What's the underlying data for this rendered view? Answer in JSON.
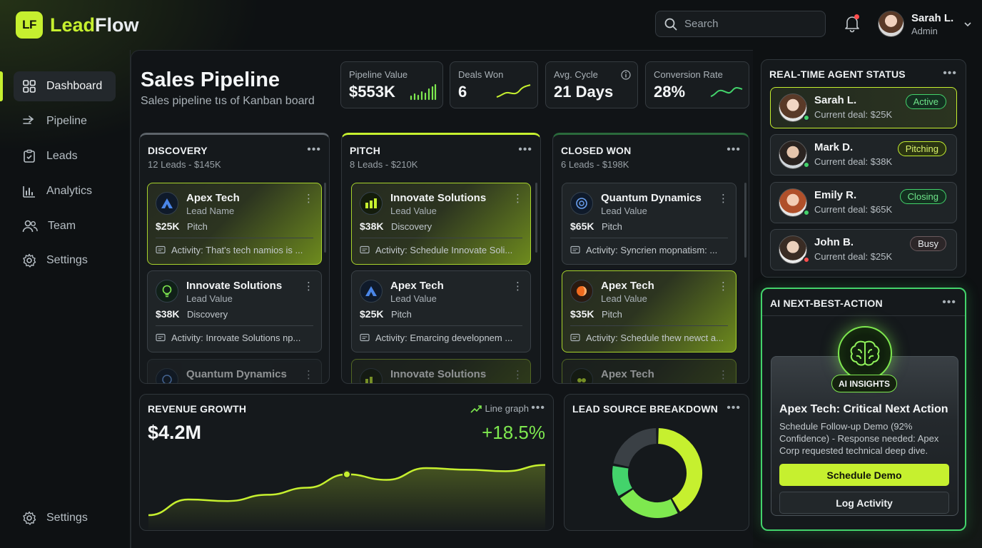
{
  "app": {
    "logo_mark": "LF",
    "logo_lead": "Lead",
    "logo_flow": "Flow"
  },
  "header": {
    "search_placeholder": "Search",
    "user": {
      "name": "Sarah L.",
      "role": "Admin"
    }
  },
  "sidebar": {
    "items": [
      {
        "label": "Dashboard",
        "icon": "grid-icon",
        "active": true
      },
      {
        "label": "Pipeline",
        "icon": "arrow-right-icon"
      },
      {
        "label": "Leads",
        "icon": "clipboard-icon"
      },
      {
        "label": "Analytics",
        "icon": "bar-chart-icon"
      },
      {
        "label": "Team",
        "icon": "users-icon"
      },
      {
        "label": "Settings",
        "icon": "gear-icon"
      }
    ],
    "bottom_settings": "Settings"
  },
  "page": {
    "title": "Sales Pipeline",
    "subtitle": "Sales pipeline tıs of Kanban board"
  },
  "kpis": [
    {
      "label": "Pipeline Value",
      "value": "$553K"
    },
    {
      "label": "Deals Won",
      "value": "6"
    },
    {
      "label": "Avg. Cycle",
      "value": "21 Days"
    },
    {
      "label": "Conversion Rate",
      "value": "28%"
    }
  ],
  "columns": [
    {
      "title": "DISCOVERY",
      "sub": "12 Leads - $145K",
      "cards": [
        {
          "name": "Apex Tech",
          "sub": "Lead Name",
          "amount": "$25K",
          "stage": "Pitch",
          "activity": "Activity: That's tech namios is ..."
        },
        {
          "name": "Innovate Solutions",
          "sub": "Lead Value",
          "amount": "$38K",
          "stage": "Discovery",
          "activity": "Activity: Inrovate Solutions np..."
        },
        {
          "name": "Quantum Dynamics"
        }
      ]
    },
    {
      "title": "PITCH",
      "sub": "8 Leads - $210K",
      "cards": [
        {
          "name": "Innovate Solutions",
          "sub": "Lead Value",
          "amount": "$38K",
          "stage": "Discovery",
          "activity": "Activity: Schedule Innovate Soli..."
        },
        {
          "name": "Apex Tech",
          "sub": "Lead Value",
          "amount": "$25K",
          "stage": "Pitch",
          "activity": "Activity: Emarcing developnem ..."
        },
        {
          "name": "Innovate Solutions"
        }
      ]
    },
    {
      "title": "CLOSED WON",
      "sub": "6 Leads - $198K",
      "cards": [
        {
          "name": "Quantum Dynamics",
          "sub": "Lead Value",
          "amount": "$65K",
          "stage": "Pitch",
          "activity": "Activity: Syncrien mopnatism: ..."
        },
        {
          "name": "Apex Tech",
          "sub": "Lead Value",
          "amount": "$35K",
          "stage": "Pitch",
          "activity": "Activity: Schedule thew newct a..."
        },
        {
          "name": "Apex Tech"
        }
      ]
    }
  ],
  "revenue": {
    "title": "REVENUE GROWTH",
    "value": "$4.2M",
    "change": "+18.5%",
    "graph_label": "Line graph"
  },
  "lead_source": {
    "title": "LEAD SOURCE BREAKDOWN"
  },
  "agents": {
    "title": "REAL-TIME AGENT STATUS",
    "list": [
      {
        "name": "Sarah L.",
        "deal": "Current deal: $25K",
        "status": "Active",
        "status_color": "#43d36b"
      },
      {
        "name": "Mark D.",
        "deal": "Current deal: $38K",
        "status": "Pitching",
        "status_color": "#c6f02f"
      },
      {
        "name": "Emily R.",
        "deal": "Current deal: $65K",
        "status": "Closing",
        "status_color": "#43d36b"
      },
      {
        "name": "John B.",
        "deal": "Current deal: $25K",
        "status": "Busy",
        "status_color": "#ff4d4d"
      }
    ]
  },
  "ai": {
    "title": "AI NEXT-BEST-ACTION",
    "chip": "AI INSIGHTS",
    "headline": "Apex Tech: Critical Next Action",
    "text": "Schedule Follow-up Demo (92% Confidence) - Response needed: Apex Corp requested technical deep dive.",
    "primary": "Schedule Demo",
    "secondary": "Log Activity"
  },
  "colors": {
    "accent": "#c6f02f",
    "green": "#43d36b",
    "bg": "#0e1113"
  },
  "chart_data": [
    {
      "type": "line",
      "title": "REVENUE GROWTH",
      "x": [
        0,
        1,
        2,
        3,
        4,
        5,
        6,
        7,
        8,
        9,
        10
      ],
      "series": [
        {
          "values": [
            10,
            30,
            28,
            36,
            45,
            62,
            55,
            70,
            68,
            66,
            74
          ]
        }
      ],
      "ylim": [
        0,
        100
      ],
      "highlight_index": 5
    },
    {
      "type": "pie",
      "title": "LEAD SOURCE BREAKDOWN",
      "slices": [
        {
          "value": 42,
          "color": "#c6f02f"
        },
        {
          "value": 24,
          "color": "#7ee84f"
        },
        {
          "value": 12,
          "color": "#43d36b"
        },
        {
          "value": 22,
          "color": "#3a4045"
        }
      ]
    }
  ]
}
